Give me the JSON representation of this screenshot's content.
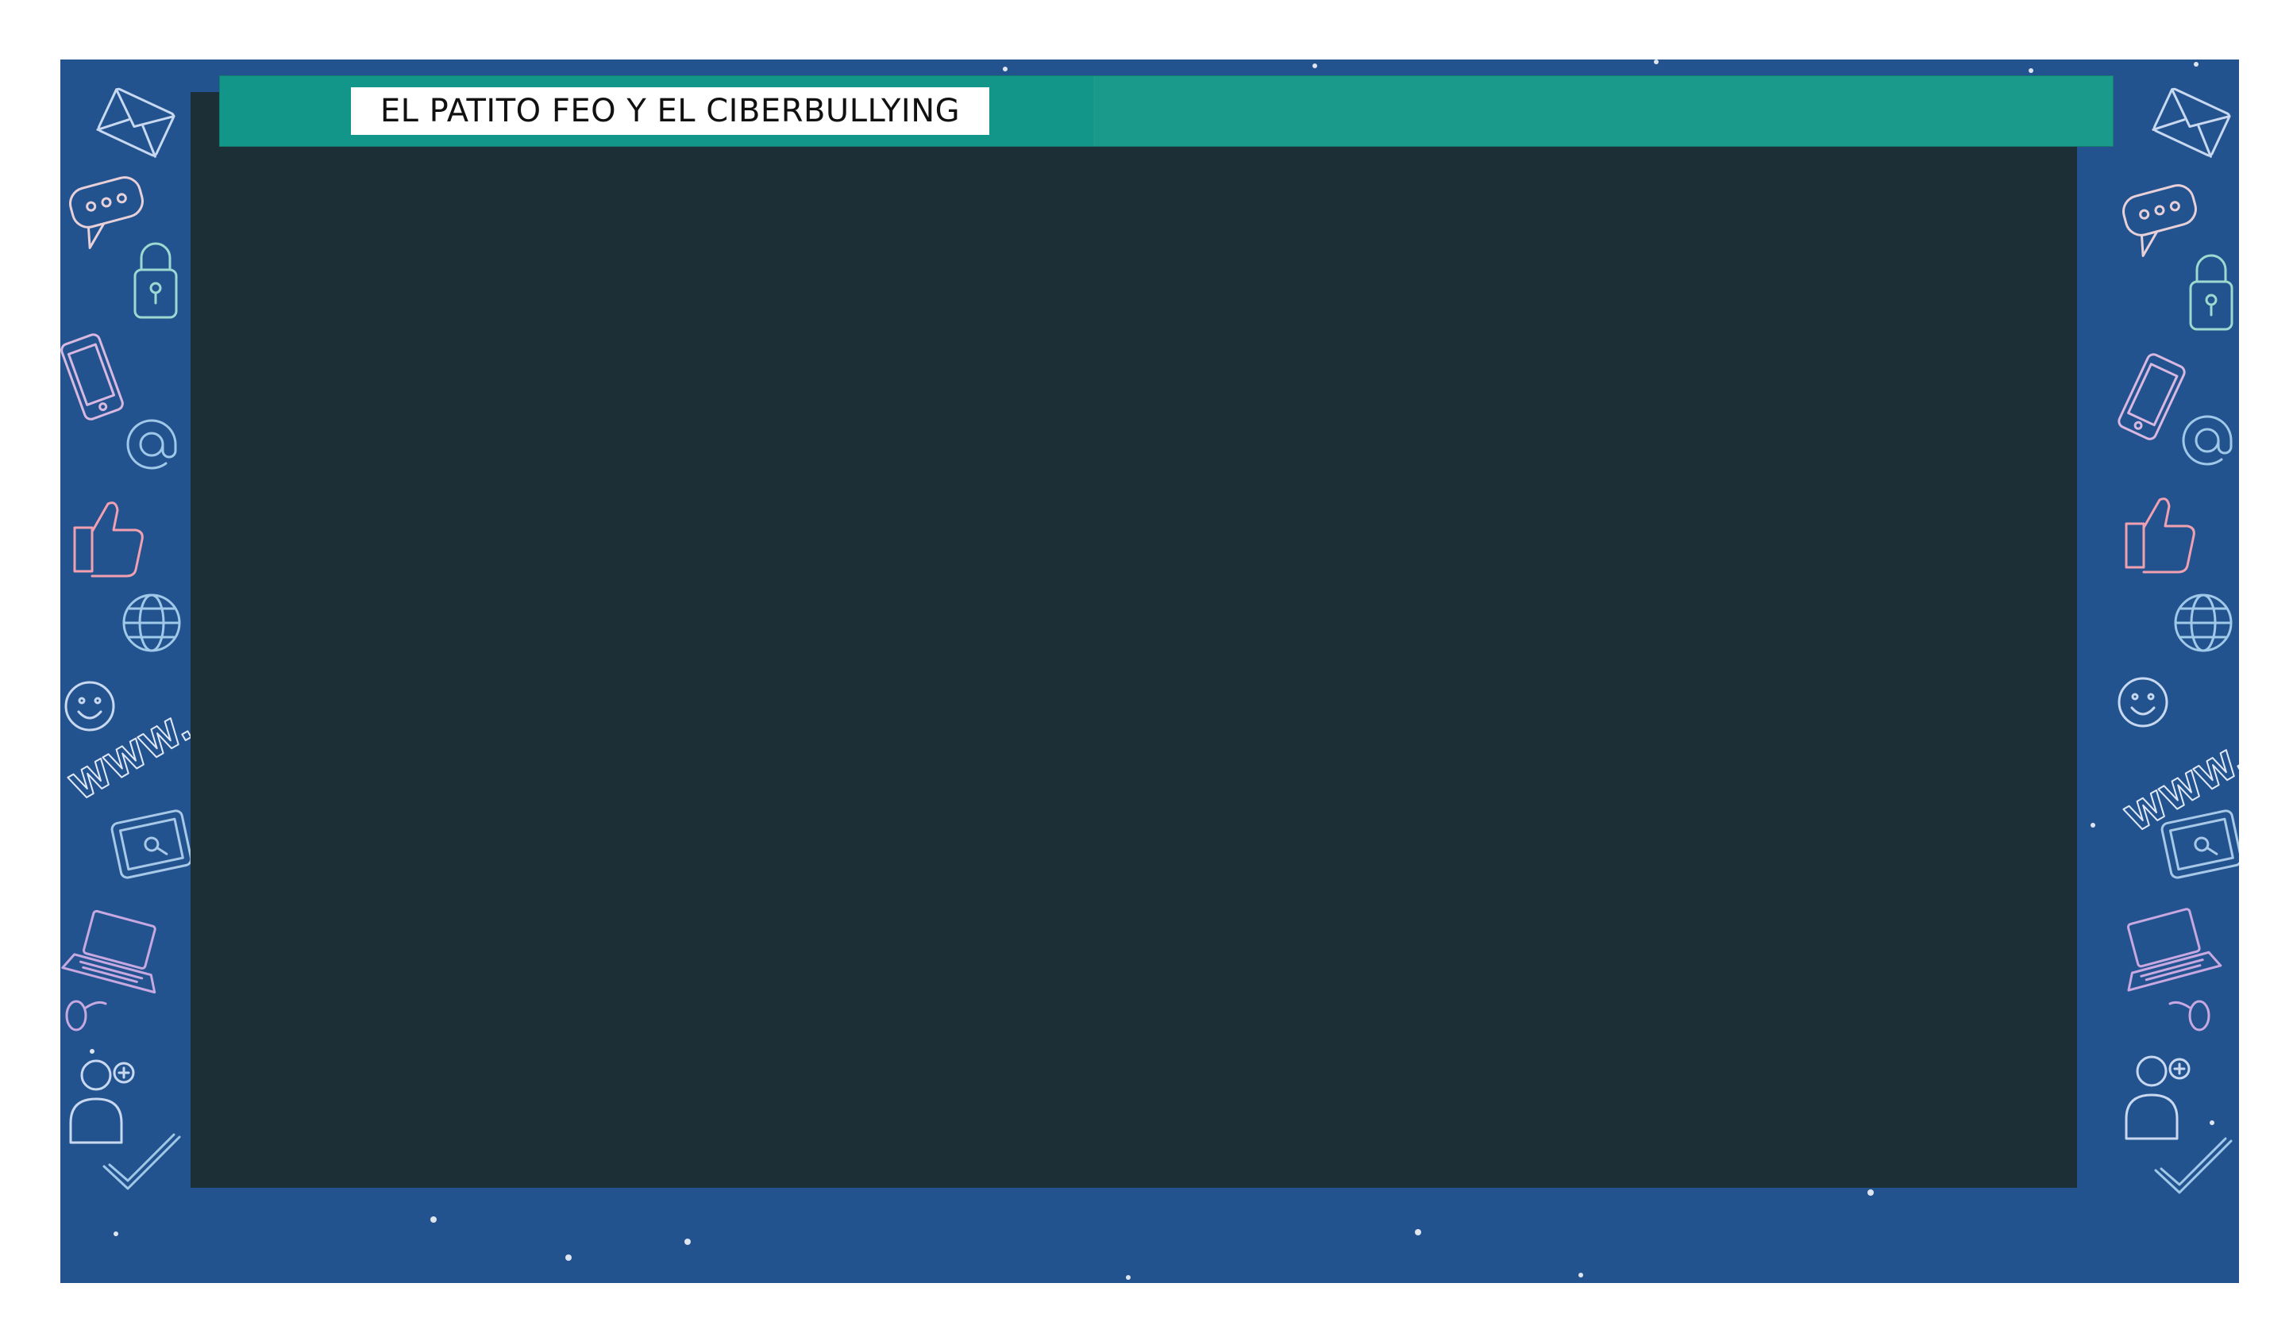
{
  "slide": {
    "title": "EL PATITO FEO Y EL CIBERBULLYING"
  },
  "colors": {
    "frame": "#23538f",
    "screen": "#1c2e36",
    "title_bar": "#1a9a8b",
    "title_label_bg": "#ffffff"
  },
  "decorations": {
    "icons": [
      "envelope-icon",
      "chat-bubble-icon",
      "padlock-icon",
      "smartphone-icon",
      "at-sign-icon",
      "thumbs-up-icon",
      "globe-icon",
      "smiley-icon",
      "www-text-icon",
      "tablet-icon",
      "laptop-icon",
      "mouse-icon",
      "user-icon",
      "checkmark-icon"
    ],
    "www_text": "WWW."
  }
}
